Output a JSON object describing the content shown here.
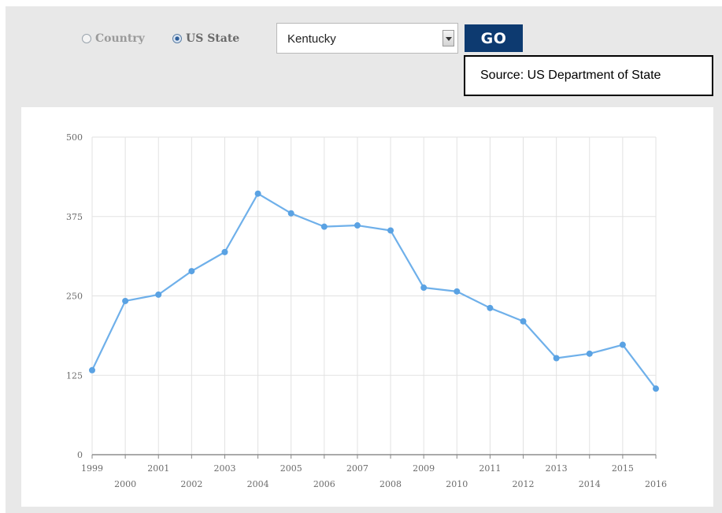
{
  "controls": {
    "radio_country_label": "Country",
    "radio_state_label": "US State",
    "selected_radio": "US State",
    "select_value": "Kentucky",
    "go_label": "GO",
    "source_label": "Source: US Department of State"
  },
  "colors": {
    "line": "#6fb0ea",
    "point": "#5aa2e3",
    "grid": "#e2e2e2",
    "go_button": "#0d3a70"
  },
  "icons": {
    "dropdown": "chevron-down-icon",
    "radio_on": "radio-checked-icon",
    "radio_off": "radio-unchecked-icon"
  },
  "chart_data": {
    "type": "line",
    "x": [
      "1999",
      "2000",
      "2001",
      "2002",
      "2003",
      "2004",
      "2005",
      "2006",
      "2007",
      "2008",
      "2009",
      "2010",
      "2011",
      "2012",
      "2013",
      "2014",
      "2015",
      "2016"
    ],
    "series": [
      {
        "values": [
          133,
          242,
          252,
          289,
          319,
          411,
          380,
          359,
          361,
          353,
          263,
          257,
          231,
          210,
          152,
          159,
          173,
          104
        ]
      }
    ],
    "ylim": [
      0,
      500
    ],
    "yticks": [
      0,
      125,
      250,
      375,
      500
    ],
    "grid": true,
    "legend": "none",
    "title": "",
    "xlabel": "",
    "ylabel": ""
  }
}
